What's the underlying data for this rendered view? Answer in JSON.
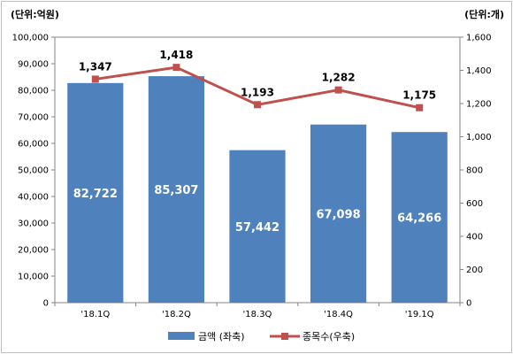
{
  "chart_data": {
    "type": "bar",
    "categories": [
      "'18.1Q",
      "'18.2Q",
      "'18.3Q",
      "'18.4Q",
      "'19.1Q"
    ],
    "series": [
      {
        "name": "금액 (좌축)",
        "type": "bar",
        "axis": "left",
        "values": [
          82722,
          85307,
          57442,
          67098,
          64266
        ],
        "labels": [
          "82,722",
          "85,307",
          "57,442",
          "67,098",
          "64,266"
        ],
        "color": "#4f81bd"
      },
      {
        "name": "종목수(우축)",
        "type": "line",
        "axis": "right",
        "values": [
          1347,
          1418,
          1193,
          1282,
          1175
        ],
        "labels": [
          "1,347",
          "1,418",
          "1,193",
          "1,282",
          "1,175"
        ],
        "color": "#c0504d"
      }
    ],
    "left_axis": {
      "unit": "(단위:억원)",
      "ylim": [
        0,
        100000
      ],
      "ticks": [
        "0",
        "10,000",
        "20,000",
        "30,000",
        "40,000",
        "50,000",
        "60,000",
        "70,000",
        "80,000",
        "90,000",
        "100,000"
      ]
    },
    "right_axis": {
      "unit": "(단위:개)",
      "ylim": [
        0,
        1600
      ],
      "ticks": [
        "0",
        "200",
        "400",
        "600",
        "800",
        "1,000",
        "1,200",
        "1,400",
        "1,600"
      ]
    },
    "grid": false,
    "legend": "bottom"
  }
}
